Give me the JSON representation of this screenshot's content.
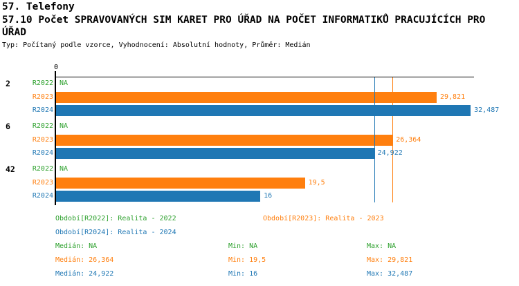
{
  "header": {
    "title_line1": "57. Telefony",
    "title_line2": "57.10 Počet SPRAVOVANÝCH SIM KARET PRO ÚŘAD NA POČET INFORMATIKŮ PRACUJÍCÍCH PRO ÚŘAD",
    "subtitle": "Typ: Počítaný podle vzorce, Vyhodnocení: Absolutní hodnoty, Průměr: Medián"
  },
  "colors": {
    "green": "#2CA02C",
    "orange": "#FF7F0E",
    "blue": "#1F77B4",
    "axis": "#000000"
  },
  "chart_data": {
    "type": "bar",
    "orientation": "horizontal",
    "title": "57.10 Počet SPRAVOVANÝCH SIM KARET PRO ÚŘAD NA POČET INFORMATIKŮ PRACUJÍCÍCH PRO ÚŘAD",
    "axis": {
      "min": 0,
      "max": 32.75,
      "tick_labels": [
        "0"
      ],
      "grid": false
    },
    "series_order": [
      "R2022",
      "R2023",
      "R2024"
    ],
    "series_colors": {
      "R2022": "green",
      "R2023": "orange",
      "R2024": "blue"
    },
    "groups": [
      {
        "label": "2",
        "bars": [
          {
            "series": "R2022",
            "value": null,
            "display": "NA"
          },
          {
            "series": "R2023",
            "value": 29.821,
            "display": "29,821"
          },
          {
            "series": "R2024",
            "value": 32.487,
            "display": "32,487"
          }
        ]
      },
      {
        "label": "6",
        "bars": [
          {
            "series": "R2022",
            "value": null,
            "display": "NA"
          },
          {
            "series": "R2023",
            "value": 26.364,
            "display": "26,364"
          },
          {
            "series": "R2024",
            "value": 24.922,
            "display": "24,922"
          }
        ]
      },
      {
        "label": "42",
        "bars": [
          {
            "series": "R2022",
            "value": null,
            "display": "NA"
          },
          {
            "series": "R2023",
            "value": 19.5,
            "display": "19,5"
          },
          {
            "series": "R2024",
            "value": 16,
            "display": "16"
          }
        ]
      }
    ],
    "median_lines": [
      {
        "series": "R2023",
        "value": 26.364,
        "color": "orange"
      },
      {
        "series": "R2024",
        "value": 24.922,
        "color": "blue"
      }
    ]
  },
  "legend": {
    "periods": [
      {
        "label": "Období[R2022]: Realita - 2022",
        "color": "green"
      },
      {
        "label": "Období[R2023]: Realita - 2023",
        "color": "orange"
      },
      {
        "label": "Období[R2024]: Realita - 2024",
        "color": "blue"
      }
    ],
    "stats": [
      {
        "color": "green",
        "median": "Medián: NA",
        "min": "Min: NA",
        "max": "Max: NA"
      },
      {
        "color": "orange",
        "median": "Medián: 26,364",
        "min": "Min: 19,5",
        "max": "Max: 29,821"
      },
      {
        "color": "blue",
        "median": "Medián: 24,922",
        "min": "Min: 16",
        "max": "Max: 32,487"
      }
    ]
  }
}
